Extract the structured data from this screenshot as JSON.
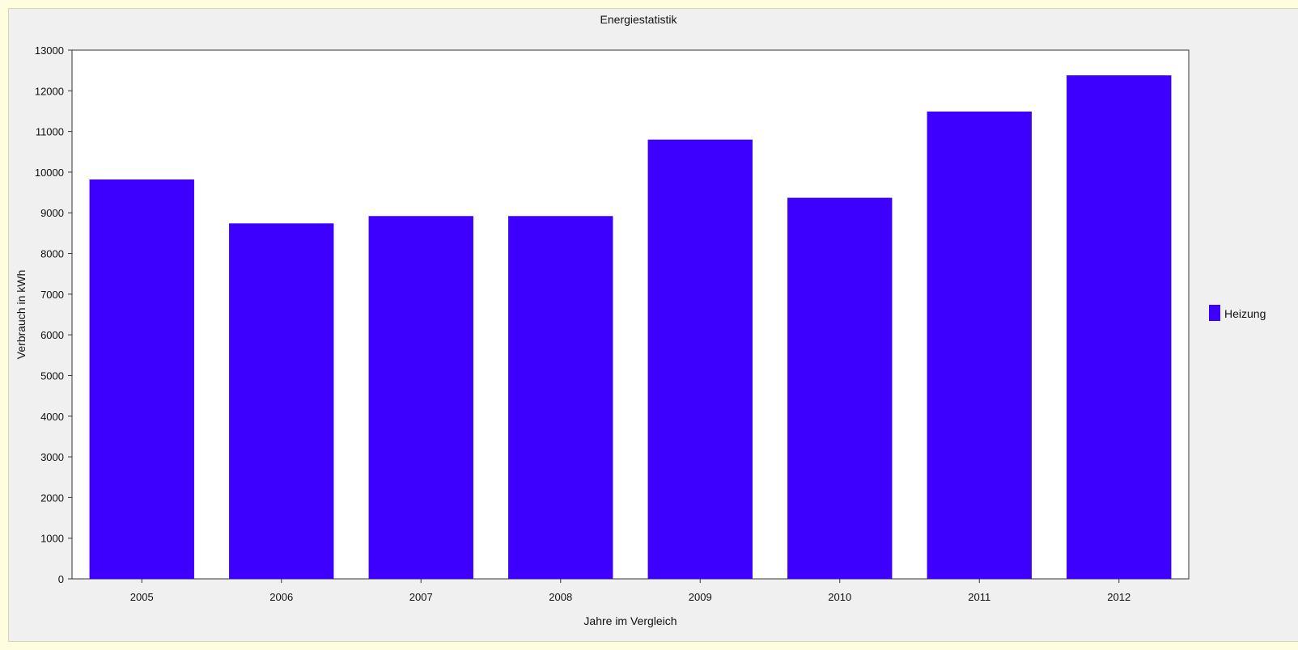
{
  "chart_data": {
    "type": "bar",
    "title": "Energiestatistik",
    "xlabel": "Jahre im Vergleich",
    "ylabel": "Verbrauch in kWh",
    "categories": [
      "2005",
      "2006",
      "2007",
      "2008",
      "2009",
      "2010",
      "2011",
      "2012"
    ],
    "series": [
      {
        "name": "Heizung",
        "color": "#3d00ff",
        "values": [
          9820,
          8740,
          8920,
          8920,
          10800,
          9370,
          11490,
          12380
        ]
      }
    ],
    "ylim": [
      0,
      13000
    ],
    "yticks": [
      "0",
      "1000",
      "2000",
      "3000",
      "4000",
      "5000",
      "6000",
      "7000",
      "8000",
      "9000",
      "10000",
      "11000",
      "12000",
      "13000"
    ],
    "grid": false,
    "legend_position": "right"
  }
}
